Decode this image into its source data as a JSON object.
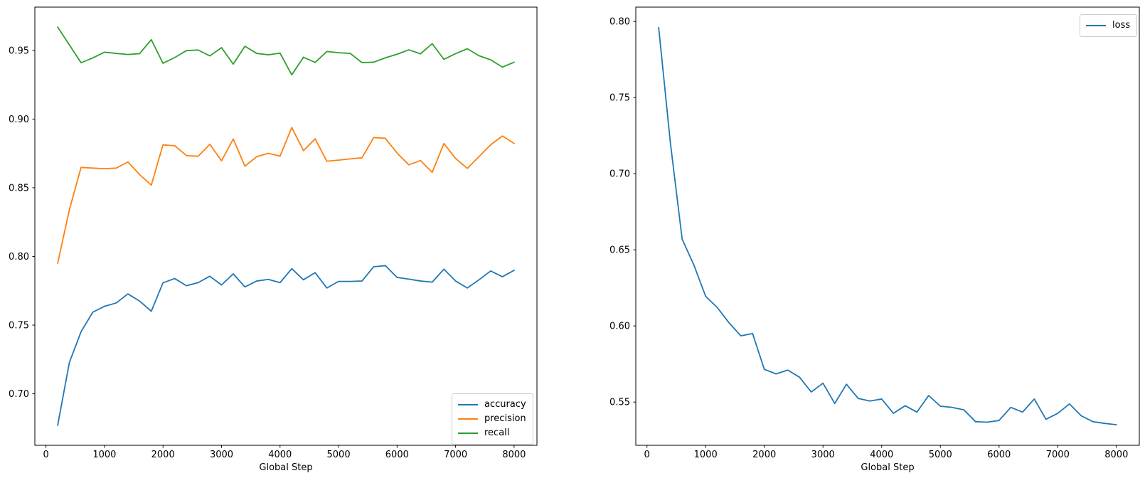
{
  "figure": {
    "xlabel": "Global Step",
    "background": "#ffffff",
    "spine_color": "#000000"
  },
  "chart_data": [
    {
      "type": "line",
      "title": "",
      "xlabel": "Global Step",
      "ylabel": "",
      "grid": false,
      "legend_loc": "lower right",
      "xlim": [
        -190,
        8390
      ],
      "ylim": [
        0.6625,
        0.9815
      ],
      "xticks": [
        0,
        1000,
        2000,
        3000,
        4000,
        5000,
        6000,
        7000,
        8000
      ],
      "xticklabels": [
        "0",
        "1000",
        "2000",
        "3000",
        "4000",
        "5000",
        "6000",
        "7000",
        "8000"
      ],
      "yticks": [
        0.7,
        0.75,
        0.8,
        0.85,
        0.9,
        0.95
      ],
      "yticklabels": [
        "0.70",
        "0.75",
        "0.80",
        "0.85",
        "0.90",
        "0.95"
      ],
      "x": [
        200,
        400,
        600,
        800,
        1000,
        1200,
        1400,
        1600,
        1800,
        2000,
        2200,
        2400,
        2600,
        2800,
        3000,
        3200,
        3400,
        3600,
        3800,
        4000,
        4200,
        4400,
        4600,
        4800,
        5000,
        5200,
        5400,
        5600,
        5800,
        6000,
        6200,
        6400,
        6600,
        6800,
        7000,
        7200,
        7400,
        7600,
        7800,
        8000
      ],
      "series": [
        {
          "name": "accuracy",
          "color": "#1f77b4",
          "values": [
            0.677,
            0.7228,
            0.7452,
            0.7594,
            0.7637,
            0.7661,
            0.7727,
            0.7675,
            0.7601,
            0.7808,
            0.7839,
            0.7787,
            0.7809,
            0.7856,
            0.7792,
            0.7873,
            0.7778,
            0.7821,
            0.7833,
            0.7809,
            0.7911,
            0.783,
            0.7882,
            0.777,
            0.7818,
            0.7818,
            0.7821,
            0.7925,
            0.7933,
            0.7847,
            0.7835,
            0.7821,
            0.7813,
            0.7907,
            0.7821,
            0.777,
            0.783,
            0.7894,
            0.7852,
            0.7899
          ]
        },
        {
          "name": "precision",
          "color": "#ff7f0e",
          "values": [
            0.795,
            0.834,
            0.8648,
            0.8643,
            0.8639,
            0.8643,
            0.8688,
            0.8596,
            0.8519,
            0.8812,
            0.8806,
            0.8734,
            0.8729,
            0.8817,
            0.8696,
            0.8855,
            0.8657,
            0.8726,
            0.8751,
            0.873,
            0.8939,
            0.877,
            0.8856,
            0.8693,
            0.8701,
            0.871,
            0.8718,
            0.8865,
            0.886,
            0.8753,
            0.8667,
            0.8698,
            0.8612,
            0.8822,
            0.8713,
            0.8641,
            0.8727,
            0.8813,
            0.8877,
            0.8822
          ]
        },
        {
          "name": "recall",
          "color": "#2ca02c",
          "values": [
            0.967,
            0.954,
            0.941,
            0.9445,
            0.9487,
            0.9478,
            0.947,
            0.9476,
            0.9578,
            0.9406,
            0.9448,
            0.9498,
            0.9503,
            0.946,
            0.952,
            0.94,
            0.953,
            0.9478,
            0.9468,
            0.948,
            0.9322,
            0.945,
            0.9412,
            0.9492,
            0.9483,
            0.9478,
            0.9411,
            0.9414,
            0.9446,
            0.9472,
            0.9504,
            0.9475,
            0.9549,
            0.9435,
            0.9476,
            0.9512,
            0.9461,
            0.9431,
            0.9378,
            0.9414
          ]
        }
      ]
    },
    {
      "type": "line",
      "title": "",
      "xlabel": "Global Step",
      "ylabel": "",
      "grid": false,
      "legend_loc": "upper right",
      "xlim": [
        -190,
        8390
      ],
      "ylim": [
        0.5216,
        0.8094
      ],
      "xticks": [
        0,
        1000,
        2000,
        3000,
        4000,
        5000,
        6000,
        7000,
        8000
      ],
      "xticklabels": [
        "0",
        "1000",
        "2000",
        "3000",
        "4000",
        "5000",
        "6000",
        "7000",
        "8000"
      ],
      "yticks": [
        0.55,
        0.6,
        0.65,
        0.7,
        0.75,
        0.8
      ],
      "yticklabels": [
        "0.55",
        "0.60",
        "0.65",
        "0.70",
        "0.75",
        "0.80"
      ],
      "x": [
        200,
        400,
        600,
        800,
        1000,
        1200,
        1400,
        1600,
        1800,
        2000,
        2200,
        2400,
        2600,
        2800,
        3000,
        3200,
        3400,
        3600,
        3800,
        4000,
        4200,
        4400,
        4600,
        4800,
        5000,
        5200,
        5400,
        5600,
        5800,
        6000,
        6200,
        6400,
        6600,
        6800,
        7000,
        7200,
        7400,
        7600,
        7800,
        8000
      ],
      "series": [
        {
          "name": "loss",
          "color": "#1f77b4",
          "values": [
            0.796,
            0.72,
            0.657,
            0.64,
            0.6195,
            0.612,
            0.602,
            0.5935,
            0.595,
            0.5715,
            0.5685,
            0.571,
            0.5663,
            0.5566,
            0.5624,
            0.5491,
            0.5617,
            0.5524,
            0.5507,
            0.552,
            0.5426,
            0.5476,
            0.5434,
            0.5543,
            0.5473,
            0.5465,
            0.5449,
            0.5371,
            0.5368,
            0.5379,
            0.5465,
            0.5434,
            0.552,
            0.5387,
            0.5426,
            0.5488,
            0.541,
            0.5371,
            0.536,
            0.5351
          ]
        }
      ]
    }
  ]
}
